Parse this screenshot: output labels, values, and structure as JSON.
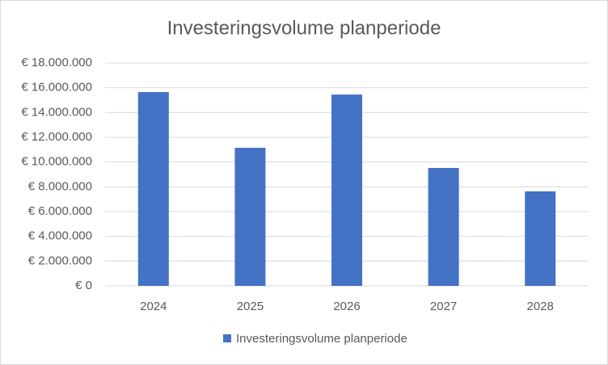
{
  "chart_data": {
    "type": "bar",
    "title": "Investeringsvolume planperiode",
    "categories": [
      "2024",
      "2025",
      "2026",
      "2027",
      "2028"
    ],
    "series": [
      {
        "name": "Investeringsvolume planperiode",
        "color": "#4472c4",
        "values": [
          15650000,
          11150000,
          15450000,
          9520000,
          7630000
        ]
      }
    ],
    "ylim": [
      0,
      18000000
    ],
    "yticks": [
      {
        "value": 0,
        "label": "€ 0"
      },
      {
        "value": 2000000,
        "label": "€ 2.000.000"
      },
      {
        "value": 4000000,
        "label": "€ 4.000.000"
      },
      {
        "value": 6000000,
        "label": "€ 6.000.000"
      },
      {
        "value": 8000000,
        "label": "€ 8.000.000"
      },
      {
        "value": 10000000,
        "label": "€ 10.000.000"
      },
      {
        "value": 12000000,
        "label": "€ 12.000.000"
      },
      {
        "value": 14000000,
        "label": "€ 14.000.000"
      },
      {
        "value": 16000000,
        "label": "€ 16.000.000"
      },
      {
        "value": 18000000,
        "label": "€ 18.000.000"
      }
    ],
    "grid": true,
    "legend": "bottom"
  }
}
